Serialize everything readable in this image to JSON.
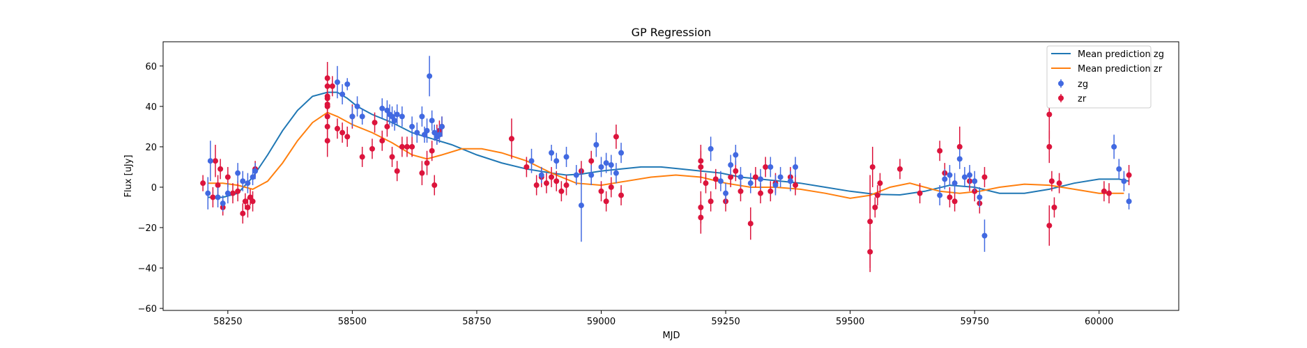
{
  "chart_data": {
    "type": "scatter",
    "title": "GP Regression",
    "xlabel": "MJD",
    "ylabel": "Flux [uJy]",
    "xlim": [
      58120,
      60160
    ],
    "ylim": [
      -61,
      72
    ],
    "xticks": [
      58250,
      58500,
      58750,
      59000,
      59250,
      59500,
      59750,
      60000
    ],
    "yticks": [
      -60,
      -40,
      -20,
      0,
      20,
      40,
      60
    ],
    "legend_position": "top-right",
    "colors": {
      "zg": "#4169e1",
      "zr": "#dc143c",
      "mean_zg": "#1f77b4",
      "mean_zr": "#ff7f0e"
    },
    "lines": [
      {
        "name": "Mean prediction zg",
        "x": [
          58210,
          58240,
          58270,
          58300,
          58330,
          58360,
          58390,
          58420,
          58450,
          58470,
          58490,
          58510,
          58540,
          58580,
          58620,
          58660,
          58700,
          58750,
          58800,
          58850,
          58900,
          58930,
          58960,
          59000,
          59040,
          59080,
          59120,
          59160,
          59200,
          59240,
          59280,
          59320,
          59360,
          59400,
          59450,
          59500,
          59550,
          59600,
          59650,
          59700,
          59750,
          59800,
          59850,
          59900,
          59950,
          60000,
          60040,
          60060
        ],
        "y": [
          -5,
          -5,
          -3,
          5,
          16,
          28,
          38,
          45,
          47,
          47,
          44,
          40,
          36,
          32,
          27,
          24,
          21,
          16,
          12,
          9,
          7,
          6,
          6.5,
          8,
          9,
          10,
          10,
          9,
          8,
          7,
          5,
          4,
          3,
          2,
          0,
          -2,
          -3.5,
          -3.8,
          -2,
          1,
          0,
          -3,
          -3,
          -1,
          2,
          4,
          4,
          3
        ]
      },
      {
        "name": "Mean prediction zr",
        "x": [
          58210,
          58240,
          58270,
          58300,
          58330,
          58360,
          58390,
          58420,
          58450,
          58470,
          58500,
          58540,
          58580,
          58620,
          58650,
          58680,
          58720,
          58760,
          58800,
          58850,
          58900,
          58950,
          59000,
          59050,
          59100,
          59150,
          59200,
          59250,
          59300,
          59350,
          59400,
          59450,
          59500,
          59540,
          59580,
          59620,
          59650,
          59680,
          59720,
          59760,
          59800,
          59850,
          59900,
          59950,
          60000,
          60050
        ],
        "y": [
          2,
          2,
          1,
          -1,
          3,
          12,
          23,
          32,
          37,
          35,
          31,
          27,
          22,
          16,
          14,
          16,
          19,
          19,
          17,
          13,
          7,
          2,
          1,
          3,
          5,
          6,
          5,
          2,
          0,
          0,
          -1,
          -3,
          -5.5,
          -4,
          0,
          2,
          0,
          -2,
          -3,
          -2,
          0,
          1.5,
          1,
          -1,
          -3,
          -3
        ]
      }
    ],
    "series": [
      {
        "name": "zg",
        "x": [
          58210,
          58215,
          58230,
          58240,
          58250,
          58270,
          58280,
          58290,
          58300,
          58305,
          58470,
          58480,
          58490,
          58500,
          58510,
          58520,
          58560,
          58570,
          58575,
          58580,
          58585,
          58590,
          58600,
          58620,
          58630,
          58640,
          58645,
          58650,
          58655,
          58660,
          58665,
          58670,
          58675,
          58680,
          58860,
          58880,
          58900,
          58910,
          58930,
          58950,
          58960,
          58980,
          58990,
          59000,
          59010,
          59020,
          59030,
          59040,
          59220,
          59240,
          59250,
          59260,
          59270,
          59280,
          59300,
          59320,
          59340,
          59350,
          59360,
          59380,
          59390,
          59680,
          59690,
          59700,
          59710,
          59720,
          59730,
          59740,
          59750,
          59760,
          59770,
          60030,
          60040,
          60050,
          60060
        ],
        "y": [
          -3,
          13,
          -5,
          -8,
          -3,
          7,
          3,
          2,
          5,
          8,
          52,
          46,
          51,
          35,
          40,
          35,
          39,
          38,
          36,
          35,
          33,
          36,
          35,
          30,
          27,
          35,
          26,
          28,
          55,
          33,
          27,
          25,
          26,
          30,
          13,
          6,
          17,
          13,
          15,
          6,
          -9,
          6,
          21,
          10,
          12,
          11,
          7,
          17,
          19,
          3,
          -3,
          11,
          16,
          5,
          2,
          4,
          10,
          1,
          5,
          3,
          10,
          -4,
          4,
          6,
          2,
          14,
          5,
          6,
          3,
          -5,
          -24,
          20,
          9,
          3,
          -7
        ],
        "err": [
          8,
          10,
          5,
          4,
          5,
          5,
          5,
          5,
          4,
          4,
          8,
          5,
          3,
          5,
          5,
          4,
          5,
          5,
          5,
          5,
          5,
          5,
          5,
          5,
          5,
          5,
          4,
          6,
          10,
          5,
          4,
          4,
          4,
          5,
          6,
          4,
          4,
          4,
          5,
          5,
          18,
          5,
          6,
          5,
          5,
          5,
          5,
          5,
          6,
          5,
          5,
          5,
          5,
          5,
          5,
          5,
          5,
          5,
          5,
          5,
          5,
          5,
          5,
          5,
          5,
          5,
          5,
          5,
          5,
          5,
          8,
          6,
          5,
          5,
          4
        ],
        "marker_color": "#4169e1"
      },
      {
        "name": "zr",
        "x": [
          58200,
          58220,
          58225,
          58230,
          58235,
          58240,
          58250,
          58260,
          58270,
          58280,
          58285,
          58290,
          58295,
          58300,
          58305,
          58450,
          58450,
          58450,
          58450,
          58450,
          58450,
          58450,
          58450,
          58450,
          58460,
          58470,
          58480,
          58490,
          58500,
          58520,
          58540,
          58545,
          58560,
          58570,
          58580,
          58590,
          58600,
          58610,
          58620,
          58640,
          58650,
          58660,
          58665,
          58670,
          58675,
          58680,
          58820,
          58850,
          58870,
          58880,
          58890,
          58900,
          58910,
          58920,
          58930,
          58960,
          58980,
          59000,
          59010,
          59020,
          59030,
          59040,
          59200,
          59200,
          59200,
          59200,
          59210,
          59220,
          59230,
          59250,
          59260,
          59270,
          59280,
          59300,
          59310,
          59320,
          59330,
          59340,
          59350,
          59380,
          59390,
          59540,
          59540,
          59545,
          59550,
          59555,
          59560,
          59600,
          59640,
          59680,
          59690,
          59700,
          59710,
          59720,
          59740,
          59750,
          59760,
          59770,
          59900,
          59900,
          59900,
          59905,
          59910,
          59920,
          60010,
          60020,
          60060
        ],
        "y": [
          2,
          -5,
          13,
          1,
          9,
          -10,
          5,
          -3,
          -2,
          -13,
          -7,
          -10,
          -5,
          -7,
          9,
          54,
          50,
          45,
          40,
          44,
          35,
          30,
          23,
          41,
          50,
          29,
          27,
          25,
          35,
          15,
          19,
          32,
          23,
          30,
          15,
          8,
          20,
          20,
          20,
          7,
          12,
          18,
          1,
          26,
          28,
          30,
          24,
          10,
          1,
          5,
          2,
          5,
          3,
          -2,
          1,
          8,
          13,
          -2,
          -7,
          0,
          25,
          -4,
          13,
          -15,
          10,
          -10,
          2,
          -7,
          4,
          -7,
          5,
          8,
          -2,
          -18,
          5,
          -3,
          10,
          -2,
          2,
          5,
          1,
          -32,
          -17,
          10,
          -10,
          -4,
          2,
          9,
          -3,
          18,
          7,
          -5,
          -7,
          20,
          3,
          -2,
          -8,
          5,
          36,
          20,
          -19,
          3,
          -10,
          2,
          -2,
          -3,
          6
        ],
        "err": [
          4,
          5,
          8,
          5,
          5,
          4,
          5,
          5,
          5,
          5,
          4,
          5,
          4,
          5,
          4,
          8,
          6,
          5,
          5,
          5,
          6,
          6,
          8,
          5,
          5,
          5,
          5,
          5,
          6,
          5,
          5,
          5,
          5,
          5,
          5,
          5,
          5,
          5,
          5,
          6,
          6,
          5,
          5,
          5,
          5,
          5,
          10,
          5,
          5,
          5,
          5,
          5,
          5,
          5,
          5,
          5,
          5,
          5,
          5,
          5,
          6,
          5,
          8,
          8,
          8,
          8,
          5,
          5,
          5,
          5,
          5,
          5,
          5,
          8,
          5,
          5,
          5,
          5,
          5,
          5,
          5,
          10,
          23,
          10,
          5,
          5,
          5,
          5,
          5,
          5,
          5,
          5,
          5,
          10,
          5,
          5,
          5,
          5,
          12,
          8,
          10,
          5,
          5,
          5,
          5,
          5,
          5
        ],
        "marker_color": "#dc143c"
      }
    ]
  }
}
